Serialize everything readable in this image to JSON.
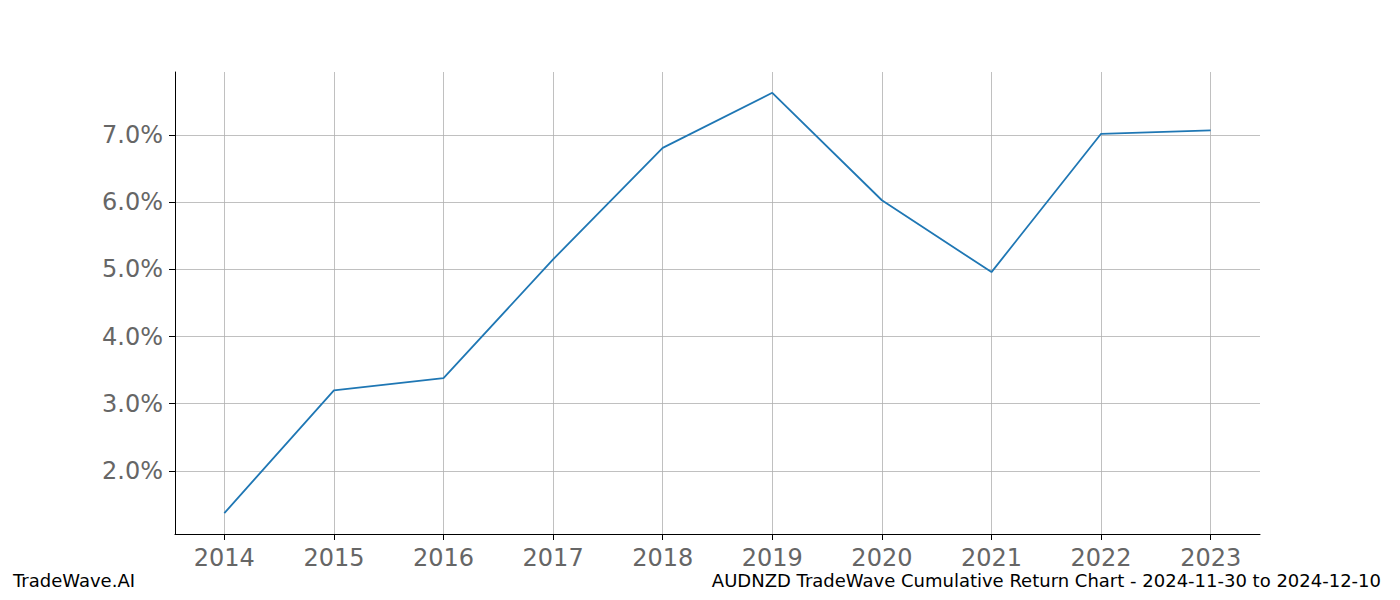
{
  "chart_data": {
    "type": "line",
    "title": "AUDNZD TradeWave Cumulative Return Chart - 2024-11-30 to 2024-12-10",
    "annotations": [
      "TradeWave.AI"
    ],
    "x": [
      2014,
      2015,
      2016,
      2017,
      2018,
      2019,
      2020,
      2021,
      2022,
      2023
    ],
    "values": [
      1.37,
      3.2,
      3.38,
      5.15,
      6.81,
      7.63,
      6.03,
      4.96,
      7.02,
      7.07
    ],
    "color": "#1f77b4",
    "xlim": [
      2013.55,
      2023.45
    ],
    "xticks": [
      2014,
      2015,
      2016,
      2017,
      2018,
      2019,
      2020,
      2021,
      2022,
      2023
    ],
    "ylim": [
      1.06,
      7.94
    ],
    "yticks": [
      {
        "value": 2,
        "label": "2.0%"
      },
      {
        "value": 3,
        "label": "3.0%"
      },
      {
        "value": 4,
        "label": "4.0%"
      },
      {
        "value": 5,
        "label": "5.0%"
      },
      {
        "value": 6,
        "label": "6.0%"
      },
      {
        "value": 7,
        "label": "7.0%"
      }
    ],
    "grid": true
  }
}
